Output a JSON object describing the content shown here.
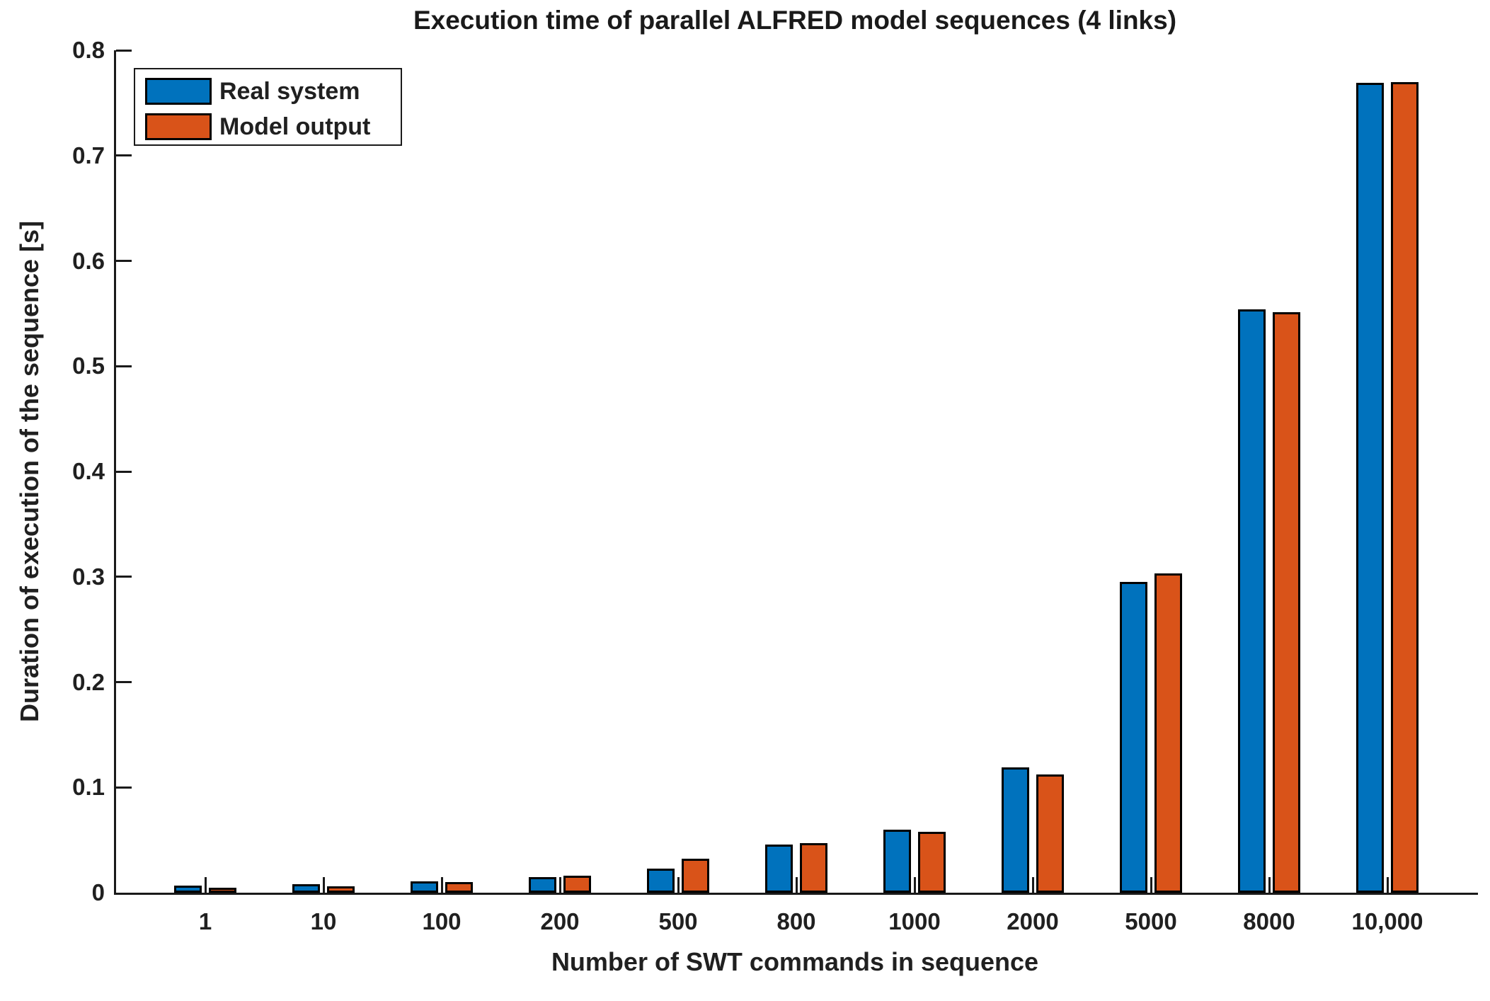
{
  "figure": {
    "title": "Execution time of parallel ALFRED model sequences (4 links)"
  },
  "axes": {
    "x": {
      "label": "Number of SWT commands in sequence",
      "tick_labels": [
        "1",
        "10",
        "100",
        "200",
        "500",
        "800",
        "1000",
        "2000",
        "5000",
        "8000",
        "10,000"
      ]
    },
    "y": {
      "label": "Duration of execution of the sequence [s]",
      "tick_labels": [
        "0",
        "0.1",
        "0.2",
        "0.3",
        "0.4",
        "0.5",
        "0.6",
        "0.7",
        "0.8"
      ]
    }
  },
  "legend": {
    "items": [
      {
        "label": "Real system",
        "color": "#0072BD"
      },
      {
        "label": "Model output",
        "color": "#D95319"
      }
    ]
  },
  "chart_data": {
    "type": "bar",
    "title": "Execution time of parallel ALFRED model sequences (4 links)",
    "xlabel": "Number of SWT commands in sequence",
    "ylabel": "Duration of execution of the sequence [s]",
    "categories": [
      "1",
      "10",
      "100",
      "200",
      "500",
      "800",
      "1000",
      "2000",
      "5000",
      "8000",
      "10,000"
    ],
    "series": [
      {
        "name": "Real system",
        "color": "#0072BD",
        "values": [
          0.007,
          0.008,
          0.011,
          0.015,
          0.023,
          0.046,
          0.06,
          0.119,
          0.295,
          0.554,
          0.769
        ]
      },
      {
        "name": "Model output",
        "color": "#D95319",
        "values": [
          0.005,
          0.006,
          0.01,
          0.016,
          0.032,
          0.047,
          0.058,
          0.112,
          0.303,
          0.551,
          0.77
        ]
      }
    ],
    "ylim": [
      0,
      0.8
    ],
    "ytick_step": 0.1,
    "grid": false,
    "legend_position": "northwest",
    "bar_edge_color": "#000000",
    "tick_direction": "in"
  }
}
